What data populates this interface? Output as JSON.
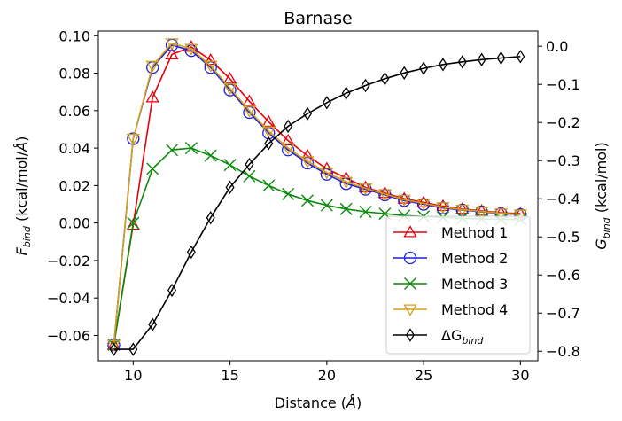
{
  "chart_data": {
    "type": "line",
    "title": "Barnase",
    "xlabel": {
      "main": "Distance (",
      "unit": "Å",
      "close": ")"
    },
    "ylabel_left": {
      "main": "F",
      "sub": "bind",
      "rest": " (kcal/mol/",
      "unit": "Å",
      "close": ")"
    },
    "ylabel_right": {
      "main": "G",
      "sub": "bind",
      "rest": " (kcal/mol)"
    },
    "xlim": [
      8.2,
      30.9
    ],
    "ylim_left": [
      -0.0735,
      0.1025
    ],
    "ylim_right": [
      -0.825,
      0.04
    ],
    "xticks": [
      10,
      15,
      20,
      25,
      30
    ],
    "yticks_left": [
      -0.06,
      -0.04,
      -0.02,
      0.0,
      0.02,
      0.04,
      0.06,
      0.08,
      0.1
    ],
    "yticks_left_labels": [
      "−0.06",
      "−0.04",
      "−0.02",
      "0.00",
      "0.02",
      "0.04",
      "0.06",
      "0.08",
      "0.10"
    ],
    "yticks_right": [
      0.0,
      -0.1,
      -0.2,
      -0.3,
      -0.4,
      -0.5,
      -0.6,
      -0.7,
      -0.8
    ],
    "yticks_right_labels": [
      "0.0",
      "−0.1",
      "−0.2",
      "−0.3",
      "−0.4",
      "−0.5",
      "−0.6",
      "−0.7",
      "−0.8"
    ],
    "grid": false,
    "legend_position": "bottom-right",
    "series": [
      {
        "name": "Method 1",
        "axis": "left",
        "color": "#e8000b",
        "marker": "triangle-up",
        "x": [
          9,
          10,
          11,
          12,
          13,
          14,
          15,
          16,
          17,
          18,
          19,
          20,
          21,
          22,
          23,
          24,
          25,
          26,
          27,
          28,
          29,
          30
        ],
        "y": [
          -0.065,
          -0.001,
          0.067,
          0.09,
          0.094,
          0.087,
          0.077,
          0.065,
          0.054,
          0.044,
          0.036,
          0.029,
          0.024,
          0.019,
          0.016,
          0.013,
          0.011,
          0.009,
          0.0075,
          0.0065,
          0.0055,
          0.005
        ]
      },
      {
        "name": "Method 2",
        "axis": "left",
        "color": "#1f1fde",
        "marker": "circle",
        "x": [
          9,
          10,
          11,
          12,
          13,
          14,
          15,
          16,
          17,
          18,
          19,
          20,
          21,
          22,
          23,
          24,
          25,
          26,
          27,
          28,
          29,
          30
        ],
        "y": [
          -0.065,
          0.045,
          0.083,
          0.095,
          0.092,
          0.083,
          0.071,
          0.059,
          0.048,
          0.039,
          0.032,
          0.026,
          0.021,
          0.018,
          0.015,
          0.012,
          0.01,
          0.008,
          0.007,
          0.006,
          0.005,
          0.0045
        ]
      },
      {
        "name": "Method 3",
        "axis": "left",
        "color": "#0a8a0a",
        "marker": "x",
        "x": [
          9,
          10,
          11,
          12,
          13,
          14,
          15,
          16,
          17,
          18,
          19,
          20,
          21,
          22,
          23,
          24,
          25,
          26,
          27,
          28,
          29,
          30
        ],
        "y": [
          -0.065,
          0.0,
          0.029,
          0.039,
          0.04,
          0.036,
          0.031,
          0.025,
          0.02,
          0.0155,
          0.012,
          0.0095,
          0.0075,
          0.006,
          0.005,
          0.004,
          0.0035,
          0.003,
          0.0025,
          0.0022,
          0.002,
          0.0018
        ]
      },
      {
        "name": "Method 4",
        "axis": "left",
        "color": "#d4a017",
        "marker": "triangle-down",
        "x": [
          9,
          10,
          11,
          12,
          13,
          14,
          15,
          16,
          17,
          18,
          19,
          20,
          21,
          22,
          23,
          24,
          25,
          26,
          27,
          28,
          29,
          30
        ],
        "y": [
          -0.065,
          0.045,
          0.084,
          0.096,
          0.093,
          0.084,
          0.072,
          0.06,
          0.049,
          0.04,
          0.033,
          0.027,
          0.022,
          0.0185,
          0.0155,
          0.0125,
          0.0105,
          0.0085,
          0.0072,
          0.0062,
          0.0052,
          0.0046
        ]
      },
      {
        "name": "ΔG",
        "name_sub": "bind",
        "axis": "right",
        "color": "#000000",
        "marker": "diamond",
        "x": [
          9,
          10,
          11,
          12,
          13,
          14,
          15,
          16,
          17,
          18,
          19,
          20,
          21,
          22,
          23,
          24,
          25,
          26,
          27,
          28,
          29,
          30
        ],
        "y": [
          -0.795,
          -0.795,
          -0.73,
          -0.64,
          -0.54,
          -0.45,
          -0.37,
          -0.31,
          -0.255,
          -0.21,
          -0.177,
          -0.148,
          -0.123,
          -0.103,
          -0.085,
          -0.07,
          -0.058,
          -0.048,
          -0.041,
          -0.035,
          -0.031,
          -0.027
        ]
      }
    ]
  }
}
